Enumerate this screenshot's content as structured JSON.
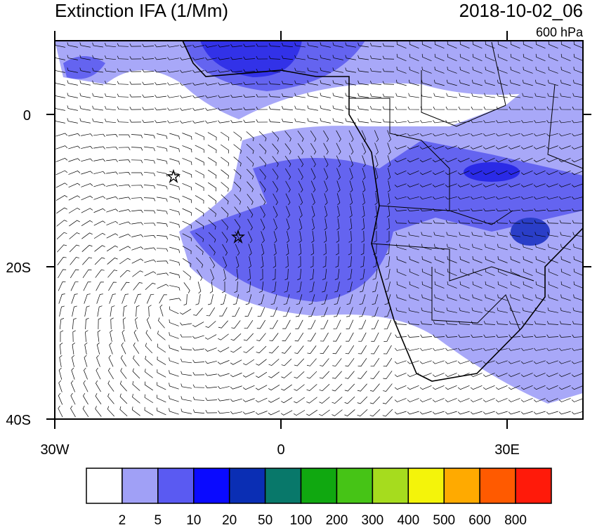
{
  "header": {
    "title": "Extinction IFA (1/Mm)",
    "date": "2018-10-02_06",
    "level": "600 hPa"
  },
  "map": {
    "lat_labels": [
      "0",
      "20S",
      "40S"
    ],
    "lon_labels": [
      "30W",
      "0",
      "30E"
    ]
  },
  "colorbar": {
    "levels": [
      2,
      5,
      10,
      20,
      50,
      100,
      200,
      300,
      400,
      500,
      600,
      800
    ],
    "colors": [
      "#ffffff",
      "#a0a0f6",
      "#5a5af2",
      "#0a0aff",
      "#0a2eb4",
      "#08786a",
      "#10a810",
      "#46c416",
      "#a6dc1e",
      "#f4f40a",
      "#ffaa00",
      "#ff5a00",
      "#ff1a0a"
    ]
  }
}
